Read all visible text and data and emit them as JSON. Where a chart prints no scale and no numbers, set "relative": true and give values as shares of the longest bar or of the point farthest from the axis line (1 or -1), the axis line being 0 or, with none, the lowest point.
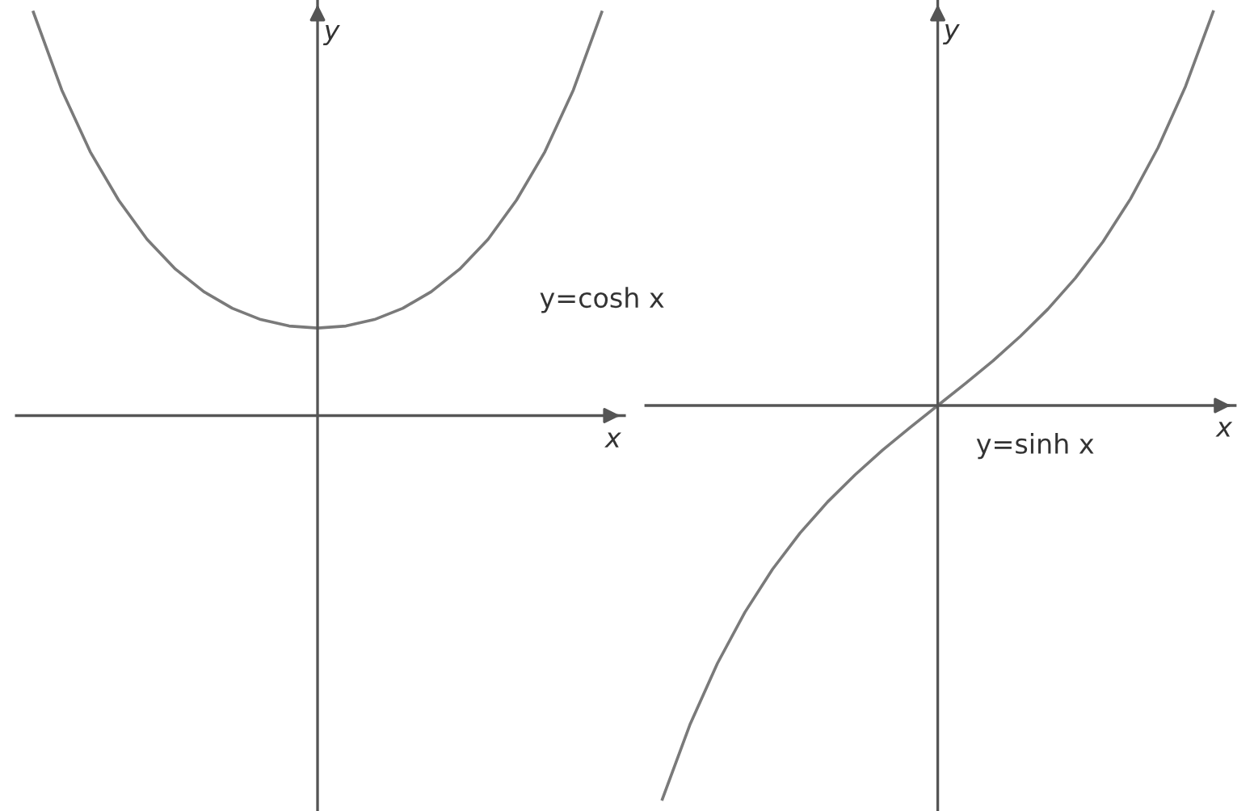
{
  "chart_data": [
    {
      "type": "line",
      "relative": true,
      "xlabel": "x",
      "ylabel": "y",
      "categories": [
        null,
        null,
        null,
        null,
        null,
        null,
        null,
        null,
        null,
        null,
        null,
        null,
        null,
        null,
        null,
        null,
        null,
        null,
        null,
        null,
        null
      ],
      "series": [
        {
          "color": "#7a7a7a",
          "values": [
            1.0,
            0.807,
            0.654,
            0.534,
            0.437,
            0.363,
            0.307,
            0.266,
            0.238,
            0.222,
            0.217,
            0.222,
            0.238,
            0.266,
            0.307,
            0.363,
            0.437,
            0.534,
            0.654,
            0.807,
            1.0
          ]
        }
      ],
      "annotations": [
        "y=cosh x"
      ]
    },
    {
      "type": "line",
      "relative": true,
      "xlabel": "x",
      "ylabel": "y",
      "categories": [
        null,
        null,
        null,
        null,
        null,
        null,
        null,
        null,
        null,
        null,
        null,
        null,
        null,
        null,
        null,
        null,
        null,
        null,
        null,
        null,
        null
      ],
      "series": [
        {
          "color": "#7a7a7a",
          "values": [
            -1.0,
            -0.811,
            -0.655,
            -0.525,
            -0.416,
            -0.324,
            -0.245,
            -0.176,
            -0.113,
            -0.0555,
            0,
            0.0555,
            0.113,
            0.176,
            0.245,
            0.324,
            0.416,
            0.525,
            0.655,
            0.811,
            1.0
          ]
        }
      ],
      "annotations": [
        "y=sinh x"
      ]
    }
  ]
}
